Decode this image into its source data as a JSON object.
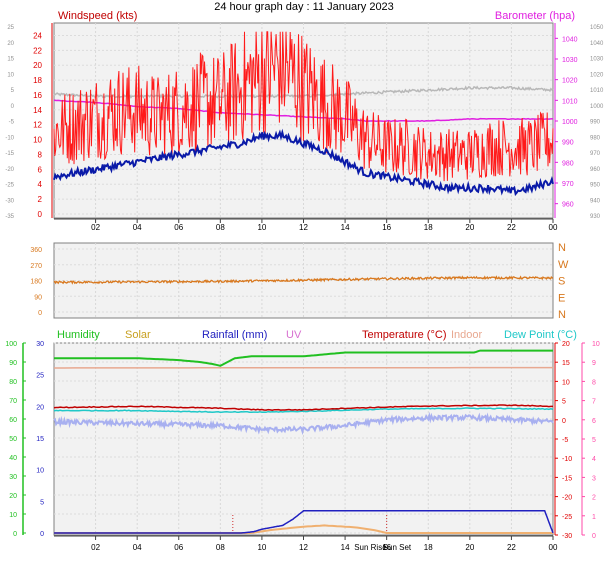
{
  "page_title": "24 hour graph day : 11 January 2023",
  "colors": {
    "wind": "#ff1a1a",
    "wind_dark": "#cc0000",
    "avg_wind": "#0a1aa8",
    "barometer": "#e020e0",
    "barometer_ref": "#b8b8b8",
    "direction": "#d8781e",
    "humidity": "#21c021",
    "solar": "#c8a020",
    "rainfall": "#2020c0",
    "uv": "#d870d0",
    "temperature": "#c00000",
    "indoor": "#e8a890",
    "dewpoint": "#20c8c8",
    "apparent": "#a8b0f0",
    "red_axis": "#e00000",
    "pink_axis": "#ff4aa8",
    "green_axis": "#20c020",
    "sunrise": "#d03030",
    "plot_bg": "#f2f2f2"
  },
  "x_ticks": [
    "02",
    "04",
    "06",
    "08",
    "10",
    "12",
    "14",
    "16",
    "18",
    "20",
    "22",
    "00"
  ],
  "sun_labels": {
    "rise": "Sun Rise",
    "set": "Sun Set"
  },
  "chart_data": [
    {
      "type": "line",
      "id": "wind-barometer",
      "title": "24 hour graph day : 11 January 2023",
      "left_axis_label": "Windspeed (kts)",
      "right_axis_label": "Barometer (hpa)",
      "left_ticks": [
        "24",
        "22",
        "20",
        "18",
        "16",
        "14",
        "12",
        "10",
        "8",
        "6",
        "4",
        "2",
        "0"
      ],
      "left_ylim": [
        0,
        25
      ],
      "outer_left_ticks": [
        "25",
        "20",
        "15",
        "10",
        "5",
        "0",
        "-5",
        "-10",
        "-15",
        "-20",
        "-25",
        "-30",
        "-35"
      ],
      "right_ticks": [
        "1040",
        "1030",
        "1020",
        "1010",
        "1000",
        "990",
        "980",
        "970",
        "960"
      ],
      "right_ylim": [
        955,
        1045
      ],
      "outer_right_ticks": [
        "1050",
        "1040",
        "1030",
        "1020",
        "1010",
        "1000",
        "990",
        "980",
        "970",
        "960",
        "950",
        "940",
        "930"
      ],
      "x_hours": [
        0,
        24
      ],
      "series": [
        {
          "key": "gust",
          "hours": [
            0,
            1,
            2,
            3,
            4,
            5,
            6,
            7,
            8,
            9,
            10,
            11,
            12,
            13,
            14,
            15,
            16,
            17,
            18,
            19,
            20,
            21,
            22,
            23,
            24
          ],
          "values": [
            11,
            12,
            13,
            14,
            14,
            13,
            14,
            15,
            15,
            17,
            19,
            20,
            17,
            15,
            13,
            10,
            9,
            9,
            8,
            8,
            8,
            9,
            9,
            9,
            10
          ]
        },
        {
          "key": "avg",
          "hours": [
            0,
            1,
            2,
            3,
            4,
            5,
            6,
            7,
            8,
            9,
            10,
            11,
            12,
            13,
            14,
            15,
            16,
            17,
            18,
            19,
            20,
            21,
            22,
            23,
            24
          ],
          "values": [
            5,
            5.5,
            6,
            6.5,
            7,
            7.5,
            8,
            8.5,
            9,
            9.5,
            10.5,
            10.5,
            9.5,
            8.5,
            7,
            5.5,
            5,
            4.5,
            4,
            3.5,
            3.5,
            3.5,
            3,
            3.5,
            4.5
          ]
        },
        {
          "key": "pressure",
          "hours": [
            0,
            2,
            4,
            6,
            8,
            10,
            12,
            14,
            15,
            16,
            18,
            20,
            22,
            24
          ],
          "values": [
            1010,
            1009,
            1007,
            1006,
            1004,
            1003,
            1002,
            1001,
            1000,
            1000,
            1000,
            1001,
            1001,
            1001
          ]
        },
        {
          "key": "pressure_ref",
          "hours": [
            0,
            2,
            4,
            6,
            8,
            10,
            12,
            14,
            16,
            18,
            20,
            22,
            24
          ],
          "values": [
            1013,
            1012,
            1012,
            1012,
            1012,
            1012,
            1012,
            1013,
            1014,
            1015,
            1016,
            1016,
            1015
          ]
        }
      ]
    },
    {
      "type": "line",
      "id": "wind-direction",
      "left_ticks": [
        "360",
        "270",
        "180",
        "90",
        "0"
      ],
      "ylim": [
        0,
        360
      ],
      "compass": [
        "N",
        "W",
        "S",
        "E",
        "N"
      ],
      "series": [
        {
          "key": "direction",
          "hours": [
            0,
            4,
            8,
            12,
            16,
            20,
            24
          ],
          "values": [
            170,
            172,
            175,
            182,
            190,
            196,
            194
          ]
        }
      ]
    },
    {
      "type": "line",
      "id": "conditions",
      "legend": [
        "Humidity",
        "Solar",
        "Rainfall (mm)",
        "UV",
        "Temperature (°C)",
        "Indoor",
        "Dew Point (°C)"
      ],
      "humidity_ticks": [
        "100",
        "90",
        "80",
        "70",
        "60",
        "50",
        "40",
        "30",
        "20",
        "10",
        "0"
      ],
      "rain_ticks": [
        "30",
        "25",
        "20",
        "15",
        "10",
        "5",
        "0"
      ],
      "temp_ticks": [
        "20",
        "15",
        "10",
        "5",
        "0",
        "-5",
        "-10",
        "-15",
        "-20",
        "-25",
        "-30"
      ],
      "uv_ticks": [
        "10",
        "9",
        "8",
        "7",
        "6",
        "5",
        "4",
        "3",
        "2",
        "1",
        "0"
      ],
      "sunrise_hour": 8.6,
      "sunset_hour": 16.0,
      "series": [
        {
          "key": "humidity",
          "hours": [
            0,
            4,
            6,
            7,
            7.6,
            8,
            8.7,
            9.5,
            12,
            14,
            20.2,
            20.5,
            24
          ],
          "values": [
            92,
            92,
            91,
            90,
            89,
            88,
            92,
            93,
            93,
            95,
            95,
            96,
            96
          ]
        },
        {
          "key": "temperature",
          "hours": [
            0,
            4,
            8,
            10,
            12,
            14,
            16,
            18,
            20,
            22,
            24
          ],
          "values": [
            3.2,
            3.5,
            3.0,
            2.6,
            2.6,
            3.0,
            3.3,
            3.6,
            3.7,
            3.8,
            3.5
          ]
        },
        {
          "key": "indoor",
          "hours": [
            0,
            24
          ],
          "values": [
            13.5,
            13.6
          ]
        },
        {
          "key": "dewpoint",
          "hours": [
            0,
            4,
            8,
            10,
            12,
            16,
            20,
            24
          ],
          "values": [
            2.4,
            2.4,
            2.0,
            2.0,
            2.2,
            2.8,
            3.0,
            2.8
          ]
        },
        {
          "key": "apparent",
          "hours": [
            0,
            4,
            8,
            10,
            12,
            14,
            16,
            18,
            20,
            24
          ],
          "values": [
            -0.5,
            -1,
            -1.5,
            -2.5,
            -2.5,
            -1.5,
            0,
            0.5,
            0.6,
            -0.5
          ]
        },
        {
          "key": "rainfall",
          "hours": [
            0,
            9,
            9.6,
            10,
            11,
            11.5,
            12,
            23.6,
            24
          ],
          "values": [
            0,
            0,
            0.2,
            0.6,
            1.2,
            2.2,
            3.5,
            3.5,
            0
          ]
        },
        {
          "key": "solar",
          "hours": [
            0,
            9.5,
            10.5,
            12,
            13,
            14.5,
            15.5,
            16,
            24
          ],
          "values": [
            0,
            0,
            0.5,
            1,
            1.2,
            0.9,
            0.4,
            0,
            0
          ]
        }
      ]
    }
  ]
}
